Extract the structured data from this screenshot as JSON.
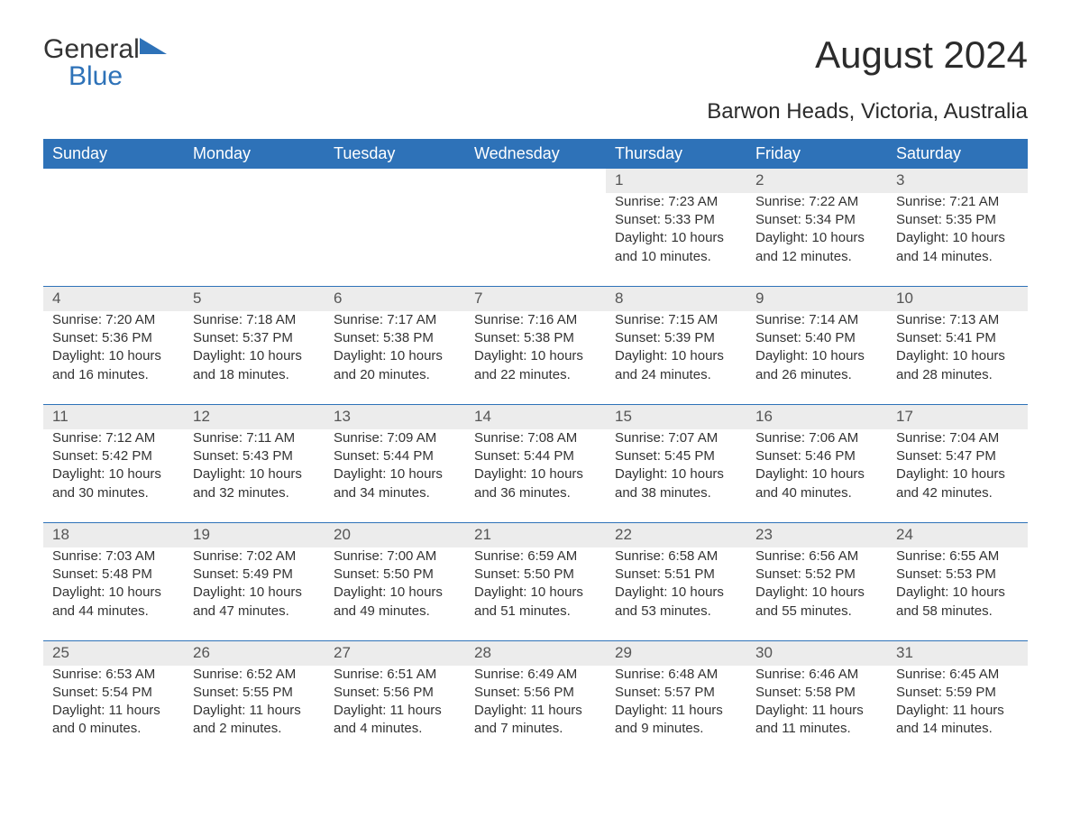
{
  "logo": {
    "word1": "General",
    "word2": "Blue"
  },
  "title": "August 2024",
  "subtitle": "Barwon Heads, Victoria, Australia",
  "colors": {
    "header_bg": "#2e72b8",
    "header_text": "#ffffff",
    "daynum_bg": "#ececec",
    "row_border": "#2e72b8",
    "body_text": "#333333",
    "page_bg": "#ffffff"
  },
  "weekdays": [
    "Sunday",
    "Monday",
    "Tuesday",
    "Wednesday",
    "Thursday",
    "Friday",
    "Saturday"
  ],
  "weeks": [
    [
      null,
      null,
      null,
      null,
      {
        "day": "1",
        "sunrise": "Sunrise: 7:23 AM",
        "sunset": "Sunset: 5:33 PM",
        "daylight": "Daylight: 10 hours and 10 minutes."
      },
      {
        "day": "2",
        "sunrise": "Sunrise: 7:22 AM",
        "sunset": "Sunset: 5:34 PM",
        "daylight": "Daylight: 10 hours and 12 minutes."
      },
      {
        "day": "3",
        "sunrise": "Sunrise: 7:21 AM",
        "sunset": "Sunset: 5:35 PM",
        "daylight": "Daylight: 10 hours and 14 minutes."
      }
    ],
    [
      {
        "day": "4",
        "sunrise": "Sunrise: 7:20 AM",
        "sunset": "Sunset: 5:36 PM",
        "daylight": "Daylight: 10 hours and 16 minutes."
      },
      {
        "day": "5",
        "sunrise": "Sunrise: 7:18 AM",
        "sunset": "Sunset: 5:37 PM",
        "daylight": "Daylight: 10 hours and 18 minutes."
      },
      {
        "day": "6",
        "sunrise": "Sunrise: 7:17 AM",
        "sunset": "Sunset: 5:38 PM",
        "daylight": "Daylight: 10 hours and 20 minutes."
      },
      {
        "day": "7",
        "sunrise": "Sunrise: 7:16 AM",
        "sunset": "Sunset: 5:38 PM",
        "daylight": "Daylight: 10 hours and 22 minutes."
      },
      {
        "day": "8",
        "sunrise": "Sunrise: 7:15 AM",
        "sunset": "Sunset: 5:39 PM",
        "daylight": "Daylight: 10 hours and 24 minutes."
      },
      {
        "day": "9",
        "sunrise": "Sunrise: 7:14 AM",
        "sunset": "Sunset: 5:40 PM",
        "daylight": "Daylight: 10 hours and 26 minutes."
      },
      {
        "day": "10",
        "sunrise": "Sunrise: 7:13 AM",
        "sunset": "Sunset: 5:41 PM",
        "daylight": "Daylight: 10 hours and 28 minutes."
      }
    ],
    [
      {
        "day": "11",
        "sunrise": "Sunrise: 7:12 AM",
        "sunset": "Sunset: 5:42 PM",
        "daylight": "Daylight: 10 hours and 30 minutes."
      },
      {
        "day": "12",
        "sunrise": "Sunrise: 7:11 AM",
        "sunset": "Sunset: 5:43 PM",
        "daylight": "Daylight: 10 hours and 32 minutes."
      },
      {
        "day": "13",
        "sunrise": "Sunrise: 7:09 AM",
        "sunset": "Sunset: 5:44 PM",
        "daylight": "Daylight: 10 hours and 34 minutes."
      },
      {
        "day": "14",
        "sunrise": "Sunrise: 7:08 AM",
        "sunset": "Sunset: 5:44 PM",
        "daylight": "Daylight: 10 hours and 36 minutes."
      },
      {
        "day": "15",
        "sunrise": "Sunrise: 7:07 AM",
        "sunset": "Sunset: 5:45 PM",
        "daylight": "Daylight: 10 hours and 38 minutes."
      },
      {
        "day": "16",
        "sunrise": "Sunrise: 7:06 AM",
        "sunset": "Sunset: 5:46 PM",
        "daylight": "Daylight: 10 hours and 40 minutes."
      },
      {
        "day": "17",
        "sunrise": "Sunrise: 7:04 AM",
        "sunset": "Sunset: 5:47 PM",
        "daylight": "Daylight: 10 hours and 42 minutes."
      }
    ],
    [
      {
        "day": "18",
        "sunrise": "Sunrise: 7:03 AM",
        "sunset": "Sunset: 5:48 PM",
        "daylight": "Daylight: 10 hours and 44 minutes."
      },
      {
        "day": "19",
        "sunrise": "Sunrise: 7:02 AM",
        "sunset": "Sunset: 5:49 PM",
        "daylight": "Daylight: 10 hours and 47 minutes."
      },
      {
        "day": "20",
        "sunrise": "Sunrise: 7:00 AM",
        "sunset": "Sunset: 5:50 PM",
        "daylight": "Daylight: 10 hours and 49 minutes."
      },
      {
        "day": "21",
        "sunrise": "Sunrise: 6:59 AM",
        "sunset": "Sunset: 5:50 PM",
        "daylight": "Daylight: 10 hours and 51 minutes."
      },
      {
        "day": "22",
        "sunrise": "Sunrise: 6:58 AM",
        "sunset": "Sunset: 5:51 PM",
        "daylight": "Daylight: 10 hours and 53 minutes."
      },
      {
        "day": "23",
        "sunrise": "Sunrise: 6:56 AM",
        "sunset": "Sunset: 5:52 PM",
        "daylight": "Daylight: 10 hours and 55 minutes."
      },
      {
        "day": "24",
        "sunrise": "Sunrise: 6:55 AM",
        "sunset": "Sunset: 5:53 PM",
        "daylight": "Daylight: 10 hours and 58 minutes."
      }
    ],
    [
      {
        "day": "25",
        "sunrise": "Sunrise: 6:53 AM",
        "sunset": "Sunset: 5:54 PM",
        "daylight": "Daylight: 11 hours and 0 minutes."
      },
      {
        "day": "26",
        "sunrise": "Sunrise: 6:52 AM",
        "sunset": "Sunset: 5:55 PM",
        "daylight": "Daylight: 11 hours and 2 minutes."
      },
      {
        "day": "27",
        "sunrise": "Sunrise: 6:51 AM",
        "sunset": "Sunset: 5:56 PM",
        "daylight": "Daylight: 11 hours and 4 minutes."
      },
      {
        "day": "28",
        "sunrise": "Sunrise: 6:49 AM",
        "sunset": "Sunset: 5:56 PM",
        "daylight": "Daylight: 11 hours and 7 minutes."
      },
      {
        "day": "29",
        "sunrise": "Sunrise: 6:48 AM",
        "sunset": "Sunset: 5:57 PM",
        "daylight": "Daylight: 11 hours and 9 minutes."
      },
      {
        "day": "30",
        "sunrise": "Sunrise: 6:46 AM",
        "sunset": "Sunset: 5:58 PM",
        "daylight": "Daylight: 11 hours and 11 minutes."
      },
      {
        "day": "31",
        "sunrise": "Sunrise: 6:45 AM",
        "sunset": "Sunset: 5:59 PM",
        "daylight": "Daylight: 11 hours and 14 minutes."
      }
    ]
  ]
}
